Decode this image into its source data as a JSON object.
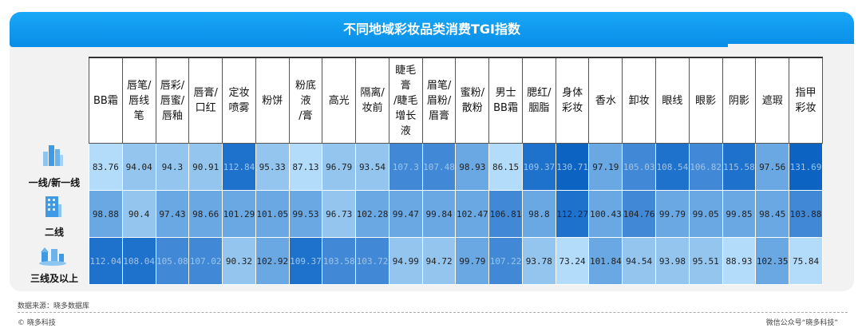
{
  "chart_data": {
    "type": "heatmap",
    "title": "不同地域彩妆品类消费TGI指数",
    "columns": [
      "BB霜",
      "唇笔/\n唇线\n笔",
      "唇彩/\n唇蜜/\n唇釉",
      "唇膏/\n口红",
      "定妆\n喷雾",
      "粉饼",
      "粉底\n液\n/膏",
      "高光",
      "隔离/\n妆前",
      "睫毛\n膏\n/睫毛\n增长\n液",
      "眉笔/\n眉粉/\n眉膏",
      "蜜粉/\n散粉",
      "男士\nBB霜",
      "腮红/\n胭脂",
      "身体\n彩妆",
      "香水",
      "卸妆",
      "眼线",
      "眼影",
      "阴影",
      "遮瑕",
      "指甲\n彩妆"
    ],
    "rows": [
      "一线/新一线",
      "二线",
      "三线及以上"
    ],
    "values": [
      [
        83.76,
        94.04,
        94.3,
        90.91,
        112.84,
        95.33,
        87.13,
        96.79,
        93.54,
        107.3,
        107.48,
        98.93,
        86.15,
        109.37,
        130.71,
        97.19,
        105.03,
        108.54,
        106.82,
        115.58,
        97.56,
        131.69
      ],
      [
        98.88,
        90.4,
        97.43,
        98.66,
        101.29,
        101.05,
        99.53,
        96.73,
        102.28,
        99.47,
        99.84,
        102.47,
        106.81,
        98.8,
        112.27,
        100.43,
        104.76,
        99.79,
        99.05,
        99.85,
        98.45,
        103.88
      ],
      [
        112.04,
        108.04,
        105.08,
        107.02,
        90.32,
        102.92,
        109.37,
        103.58,
        103.72,
        94.99,
        94.72,
        99.79,
        107.22,
        93.78,
        73.24,
        101.84,
        94.54,
        93.98,
        95.51,
        88.93,
        102.35,
        75.84
      ]
    ],
    "colors": [
      "#b3dcfa",
      "#93c5ee",
      "#6aa8e4",
      "#4189d6",
      "#1f72cc",
      "#0d63c2"
    ]
  },
  "labels": {
    "value_texts": [
      [
        "83.76",
        "94.04",
        "94.3",
        "90.91",
        "112.84",
        "95.33",
        "87.13",
        "96.79",
        "93.54",
        "107.3",
        "107.48",
        "98.93",
        "86.15",
        "109.37",
        "130.71",
        "97.19",
        "105.03",
        "108.54",
        "106.82",
        "115.58",
        "97.56",
        "131.69"
      ],
      [
        "98.88",
        "90.4",
        "97.43",
        "98.66",
        "101.29",
        "101.05",
        "99.53",
        "96.73",
        "102.28",
        "99.47",
        "99.84",
        "102.47",
        "106.81",
        "98.8",
        "112.27",
        "100.43",
        "104.76",
        "99.79",
        "99.05",
        "99.85",
        "98.45",
        "103.88"
      ],
      [
        "112.04",
        "108.04",
        "105.08",
        "107.02",
        "90.32",
        "102.92",
        "109.37",
        "103.58",
        "103.72",
        "94.99",
        "94.72",
        "99.79",
        "107.22",
        "93.78",
        "73.24",
        "101.84",
        "94.54",
        "93.98",
        "95.51",
        "88.93",
        "102.35",
        "75.84"
      ]
    ]
  },
  "footer": {
    "source": "数据来源：晓多数据库",
    "copyright": "© 晓多科技",
    "wechat": "微信公众号“晓多科技”"
  },
  "icons": [
    "city-skyline-icon",
    "building-icon",
    "small-town-icon"
  ]
}
